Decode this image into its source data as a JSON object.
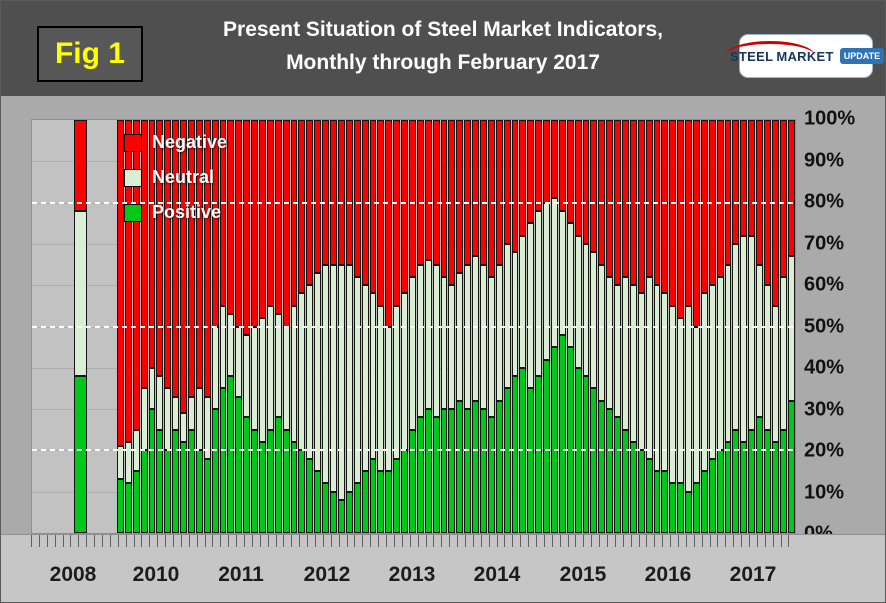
{
  "header": {
    "fig_label": "Fig 1",
    "title_line1": "Present Situation of Steel Market Indicators,",
    "title_line2": "Monthly through February 2017",
    "logo": {
      "steel": "STEEL",
      "market": "MARKET",
      "update": "UPDATE"
    }
  },
  "legend": [
    {
      "label": "Negative",
      "color": "#ff0000"
    },
    {
      "label": "Neutral",
      "color": "#d9eed3"
    },
    {
      "label": "Positive",
      "color": "#00c818"
    }
  ],
  "y_axis": {
    "ticks": [
      "100%",
      "90%",
      "80%",
      "70%",
      "60%",
      "50%",
      "40%",
      "30%",
      "20%",
      "10%",
      "0%"
    ]
  },
  "x_axis": {
    "year_labels": [
      "2008",
      "2010",
      "2011",
      "2012",
      "2013",
      "2014",
      "2015",
      "2016",
      "2017"
    ]
  },
  "chart_data": {
    "type": "bar",
    "stacked": true,
    "percent_stacked": true,
    "title": "Present Situation of Steel Market Indicators, Monthly through February 2017",
    "ylabel": "",
    "xlabel": "",
    "ylim": [
      0,
      100
    ],
    "yticks_pct": [
      0,
      10,
      20,
      30,
      40,
      50,
      60,
      70,
      80,
      90,
      100
    ],
    "dotted_gridlines": [
      20,
      50,
      80
    ],
    "series_names": [
      "Negative",
      "Neutral",
      "Positive"
    ],
    "colors": {
      "negative": "#ff0000",
      "neutral": "#d9eed3",
      "positive": "#00c818"
    },
    "bar_2008": {
      "label": "2008",
      "positive": 38,
      "neutral": 40,
      "negative": 22
    },
    "monthly": {
      "range": "2010-01 to 2017-02",
      "positive": [
        13,
        12,
        15,
        20,
        30,
        25,
        20,
        25,
        22,
        25,
        20,
        18,
        30,
        35,
        38,
        33,
        28,
        25,
        22,
        25,
        28,
        25,
        22,
        20,
        18,
        15,
        12,
        10,
        8,
        10,
        12,
        15,
        18,
        15,
        15,
        18,
        20,
        25,
        28,
        30,
        28,
        30,
        30,
        32,
        30,
        32,
        30,
        28,
        32,
        35,
        38,
        40,
        35,
        38,
        42,
        45,
        48,
        45,
        40,
        38,
        35,
        32,
        30,
        28,
        25,
        22,
        20,
        18,
        15,
        15,
        12,
        12,
        10,
        12,
        15,
        18,
        20,
        22,
        25,
        22,
        25,
        28,
        25,
        22,
        25,
        32
      ],
      "neutral": [
        8,
        10,
        10,
        15,
        10,
        13,
        15,
        8,
        7,
        8,
        15,
        15,
        20,
        20,
        15,
        17,
        20,
        25,
        30,
        30,
        25,
        25,
        33,
        38,
        42,
        48,
        53,
        55,
        57,
        55,
        50,
        45,
        40,
        40,
        35,
        37,
        38,
        37,
        37,
        36,
        37,
        32,
        30,
        31,
        35,
        35,
        35,
        34,
        33,
        35,
        30,
        32,
        40,
        40,
        38,
        36,
        30,
        30,
        32,
        32,
        33,
        33,
        32,
        32,
        37,
        38,
        38,
        44,
        45,
        43,
        43,
        40,
        45,
        38,
        43,
        42,
        42,
        43,
        45,
        50,
        47,
        37,
        35,
        33,
        37,
        35
      ],
      "negative": [
        79,
        78,
        75,
        65,
        60,
        62,
        65,
        67,
        71,
        67,
        65,
        67,
        50,
        45,
        47,
        50,
        52,
        50,
        48,
        45,
        47,
        50,
        45,
        42,
        40,
        37,
        35,
        35,
        35,
        35,
        38,
        40,
        42,
        45,
        50,
        45,
        42,
        38,
        35,
        34,
        35,
        38,
        40,
        37,
        35,
        33,
        35,
        38,
        35,
        30,
        32,
        28,
        25,
        22,
        20,
        19,
        22,
        25,
        28,
        30,
        32,
        35,
        38,
        40,
        38,
        40,
        42,
        38,
        40,
        42,
        45,
        48,
        45,
        50,
        42,
        40,
        38,
        35,
        30,
        28,
        28,
        35,
        40,
        45,
        38,
        33
      ]
    }
  }
}
